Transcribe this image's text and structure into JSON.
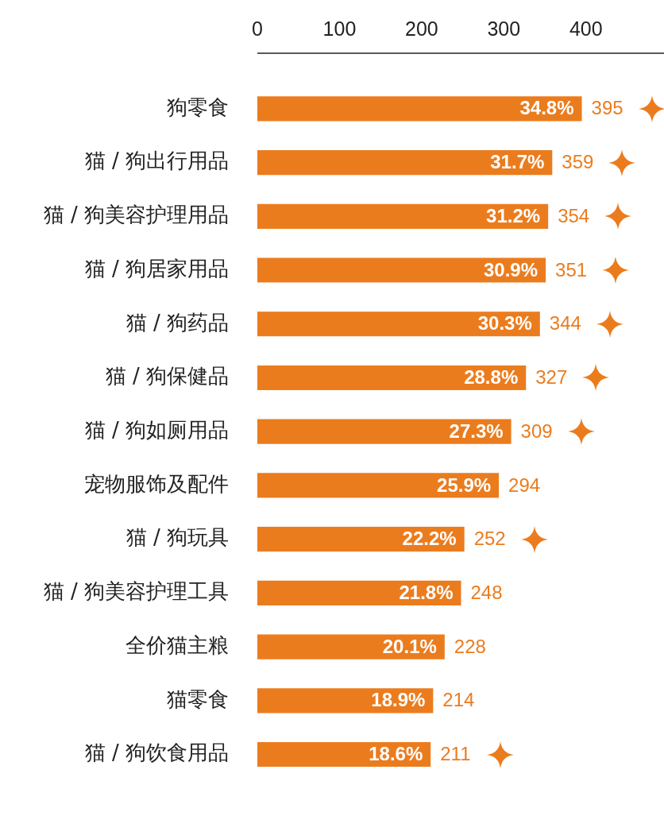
{
  "chart_data": {
    "type": "bar",
    "orientation": "horizontal",
    "categories": [
      "狗零食",
      "猫 / 狗出行用品",
      "猫 / 狗美容护理用品",
      "猫 / 狗居家用品",
      "猫 / 狗药品",
      "猫 / 狗保健品",
      "猫 / 狗如厕用品",
      "宠物服饰及配件",
      "猫 / 狗玩具",
      "猫 / 狗美容护理工具",
      "全价猫主粮",
      "猫零食",
      "猫 / 狗饮食用品"
    ],
    "series": [
      {
        "color": "#eb7c1e",
        "values": [
          395,
          359,
          354,
          351,
          344,
          327,
          309,
          294,
          252,
          248,
          228,
          214,
          211
        ]
      }
    ],
    "annotations": [
      {
        "text": "34.8%",
        "x": 395,
        "y": "狗零食"
      },
      {
        "text": "31.7%",
        "x": 359,
        "y": "猫 / 狗出行用品"
      },
      {
        "text": "31.2%",
        "x": 354,
        "y": "猫 / 狗美容护理用品"
      },
      {
        "text": "30.9%",
        "x": 351,
        "y": "猫 / 狗居家用品"
      },
      {
        "text": "30.3%",
        "x": 344,
        "y": "猫 / 狗药品"
      },
      {
        "text": "28.8%",
        "x": 327,
        "y": "猫 / 狗保健品"
      },
      {
        "text": "27.3%",
        "x": 309,
        "y": "猫 / 狗如厕用品"
      },
      {
        "text": "25.9%",
        "x": 294,
        "y": "宠物服饰及配件"
      },
      {
        "text": "22.2%",
        "x": 252,
        "y": "猫 / 狗玩具"
      },
      {
        "text": "21.8%",
        "x": 248,
        "y": "猫 / 狗美容护理工具"
      },
      {
        "text": "20.1%",
        "x": 228,
        "y": "全价猫主粮"
      },
      {
        "text": "18.9%",
        "x": 214,
        "y": "猫零食"
      },
      {
        "text": "18.6%",
        "x": 211,
        "y": "猫 / 狗饮食用品"
      }
    ],
    "xlim": [
      0,
      495
    ],
    "xticks": [
      0,
      100,
      200,
      300,
      400
    ],
    "data_labels": true
  }
}
